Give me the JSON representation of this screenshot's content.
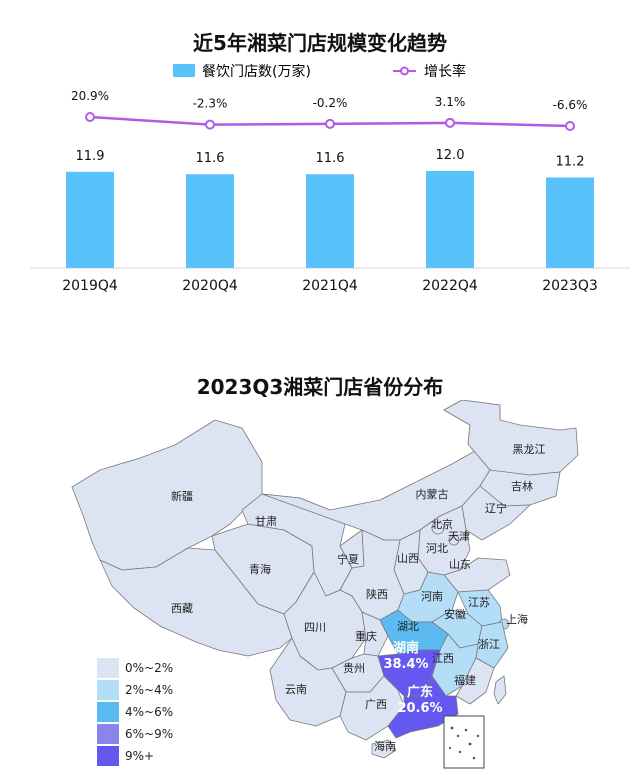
{
  "chart_data": [
    {
      "type": "bar",
      "title": "近5年湘菜门店规模变化趋势",
      "categories": [
        "2019Q4",
        "2020Q4",
        "2021Q4",
        "2022Q4",
        "2023Q3"
      ],
      "series": [
        {
          "name": "餐饮门店数(万家)",
          "type": "bar",
          "values": [
            11.9,
            11.6,
            11.6,
            12.0,
            11.2
          ],
          "value_labels": [
            "11.9",
            "11.6",
            "11.6",
            "12.0",
            "11.2"
          ],
          "color": "#5ac2fb"
        },
        {
          "name": "增长率",
          "type": "line",
          "values": [
            20.9,
            -2.3,
            -0.2,
            3.1,
            -6.6
          ],
          "value_labels": [
            "20.9%",
            "-2.3%",
            "-0.2%",
            "3.1%",
            "-6.6%"
          ],
          "color": "#b15be8"
        }
      ],
      "legend_position": "top",
      "grid": false
    },
    {
      "type": "map",
      "title": "2023Q3湘菜门店省份分布",
      "legend": [
        {
          "label": "0%~2%",
          "color": "#dce3f3"
        },
        {
          "label": "2%~4%",
          "color": "#b4ddf8"
        },
        {
          "label": "4%~6%",
          "color": "#5abaf1"
        },
        {
          "label": "6%~9%",
          "color": "#8b84ec"
        },
        {
          "label": "9%+",
          "color": "#6558f0"
        }
      ],
      "provinces": [
        {
          "name": "新疆",
          "level": 0
        },
        {
          "name": "西藏",
          "level": 0
        },
        {
          "name": "青海",
          "level": 0
        },
        {
          "name": "甘肃",
          "level": 0
        },
        {
          "name": "内蒙古",
          "level": 0
        },
        {
          "name": "黑龙江",
          "level": 0
        },
        {
          "name": "吉林",
          "level": 0
        },
        {
          "name": "辽宁",
          "level": 0
        },
        {
          "name": "北京",
          "level": 0
        },
        {
          "name": "天津",
          "level": 0
        },
        {
          "name": "河北",
          "level": 0
        },
        {
          "name": "山西",
          "level": 0
        },
        {
          "name": "山东",
          "level": 0
        },
        {
          "name": "宁夏",
          "level": 0
        },
        {
          "name": "陕西",
          "level": 0
        },
        {
          "name": "河南",
          "level": 1
        },
        {
          "name": "江苏",
          "level": 1
        },
        {
          "name": "安徽",
          "level": 1
        },
        {
          "name": "上海",
          "level": 1
        },
        {
          "name": "四川",
          "level": 0
        },
        {
          "name": "重庆",
          "level": 0
        },
        {
          "name": "湖北",
          "level": 2
        },
        {
          "name": "浙江",
          "level": 1
        },
        {
          "name": "贵州",
          "level": 0
        },
        {
          "name": "湖南",
          "level": 4,
          "share": "38.4%"
        },
        {
          "name": "江西",
          "level": 1
        },
        {
          "name": "福建",
          "level": 0
        },
        {
          "name": "云南",
          "level": 0
        },
        {
          "name": "广西",
          "level": 0
        },
        {
          "name": "广东",
          "level": 4,
          "share": "20.6%"
        },
        {
          "name": "海南",
          "level": 0
        }
      ]
    }
  ]
}
